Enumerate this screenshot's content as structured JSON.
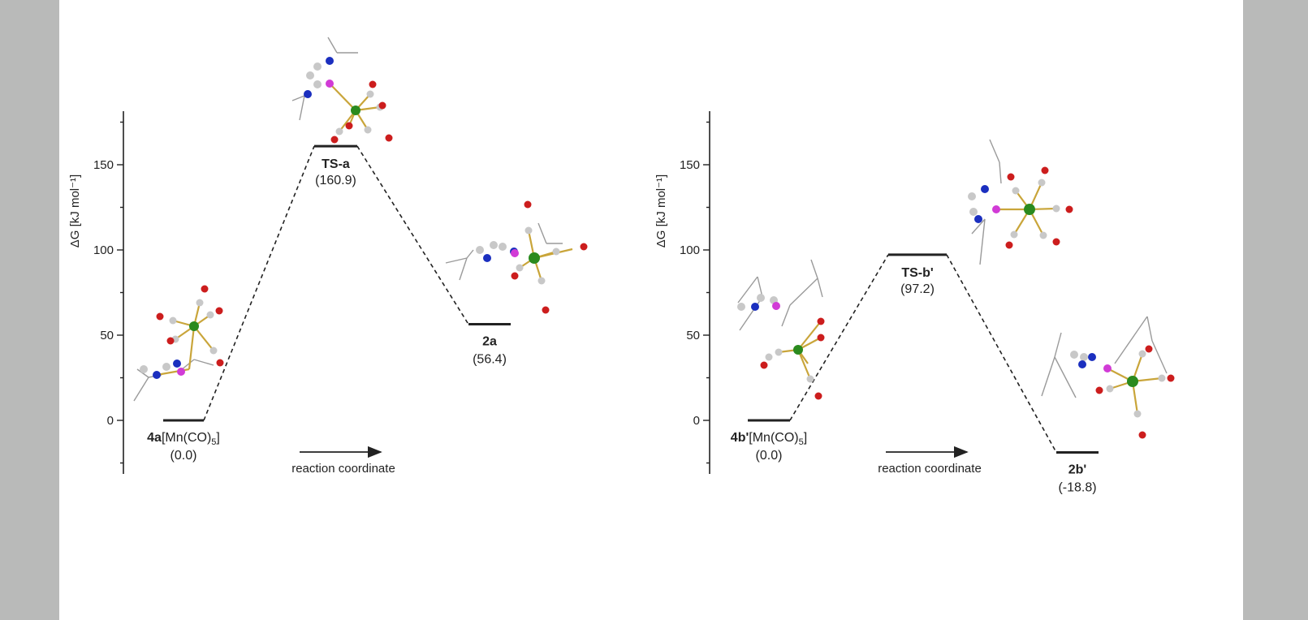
{
  "colors": {
    "background_outer": "#b9bab9",
    "panel": "#ffffff",
    "mn": "#2a8a1e",
    "carbon": "#c8c8c8",
    "oxygen": "#cc1d1d",
    "nitrogen": "#1b2fbf",
    "phosphorus": "#d13bd6",
    "bond": "#c9a53a"
  },
  "chart_data": [
    {
      "type": "line",
      "ylabel": "ΔG [kJ mol⁻¹]",
      "ylim": [
        -30,
        180
      ],
      "yticks": [
        0,
        50,
        100,
        150
      ],
      "xlabel": "reaction coordinate",
      "states": [
        {
          "name": "4a",
          "suffix": "[Mn(CO)",
          "subscript": "5",
          "suffix_end": "]",
          "energy": 0.0,
          "value_label": "(0.0)"
        },
        {
          "name": "TS-a",
          "suffix": "",
          "subscript": "",
          "suffix_end": "",
          "energy": 160.9,
          "value_label": "(160.9)"
        },
        {
          "name": "2a",
          "suffix": "",
          "subscript": "",
          "suffix_end": "",
          "energy": 56.4,
          "value_label": "(56.4)"
        }
      ]
    },
    {
      "type": "line",
      "ylabel": "ΔG [kJ mol⁻¹]",
      "ylim": [
        -30,
        180
      ],
      "yticks": [
        0,
        50,
        100,
        150
      ],
      "xlabel": "reaction coordinate",
      "states": [
        {
          "name": "4b'",
          "suffix": "[Mn(CO)",
          "subscript": "5",
          "suffix_end": "]",
          "energy": 0.0,
          "value_label": "(0.0)"
        },
        {
          "name": "TS-b'",
          "suffix": "",
          "subscript": "",
          "suffix_end": "",
          "energy": 97.2,
          "value_label": "(97.2)"
        },
        {
          "name": "2b'",
          "suffix": "",
          "subscript": "",
          "suffix_end": "",
          "energy": -18.8,
          "value_label": "(-18.8)"
        }
      ]
    }
  ]
}
